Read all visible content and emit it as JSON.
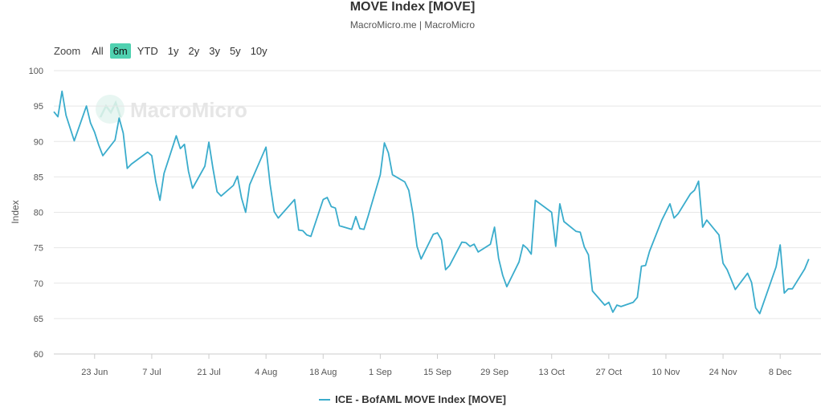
{
  "title": "MOVE Index [MOVE]",
  "subtitle": "MacroMicro.me | MacroMicro",
  "watermark": "MacroMicro",
  "zoom": {
    "label": "Zoom",
    "buttons": [
      "All",
      "6m",
      "YTD",
      "1y",
      "2y",
      "3y",
      "5y",
      "10y"
    ],
    "active": "6m"
  },
  "colors": {
    "series": "#3aaccc",
    "active_button": "#4fd1b0",
    "grid": "#e6e6e6"
  },
  "chart_data": {
    "type": "line",
    "ylabel": "Index",
    "ylim": [
      60,
      100
    ],
    "yticks": [
      60,
      65,
      70,
      75,
      80,
      85,
      90,
      95,
      100
    ],
    "xlim": [
      "2021-06-13",
      "2021-12-18"
    ],
    "xticks": [
      {
        "date": "2021-06-23",
        "label": "23 Jun"
      },
      {
        "date": "2021-07-07",
        "label": "7 Jul"
      },
      {
        "date": "2021-07-21",
        "label": "21 Jul"
      },
      {
        "date": "2021-08-04",
        "label": "4 Aug"
      },
      {
        "date": "2021-08-18",
        "label": "18 Aug"
      },
      {
        "date": "2021-09-01",
        "label": "1 Sep"
      },
      {
        "date": "2021-09-15",
        "label": "15 Sep"
      },
      {
        "date": "2021-09-29",
        "label": "29 Sep"
      },
      {
        "date": "2021-10-13",
        "label": "13 Oct"
      },
      {
        "date": "2021-10-27",
        "label": "27 Oct"
      },
      {
        "date": "2021-11-10",
        "label": "10 Nov"
      },
      {
        "date": "2021-11-24",
        "label": "24 Nov"
      },
      {
        "date": "2021-12-08",
        "label": "8 Dec"
      }
    ],
    "series": [
      {
        "name": "ICE - BofAML MOVE Index [MOVE]",
        "points": [
          [
            "2021-06-13",
            94.2
          ],
          [
            "2021-06-14",
            93.5
          ],
          [
            "2021-06-15",
            97.1
          ],
          [
            "2021-06-16",
            93.7
          ],
          [
            "2021-06-18",
            90.1
          ],
          [
            "2021-06-21",
            95.0
          ],
          [
            "2021-06-22",
            92.6
          ],
          [
            "2021-06-23",
            91.3
          ],
          [
            "2021-06-24",
            89.5
          ],
          [
            "2021-06-25",
            88.0
          ],
          [
            "2021-06-28",
            90.2
          ],
          [
            "2021-06-29",
            93.3
          ],
          [
            "2021-06-30",
            91.2
          ],
          [
            "2021-07-01",
            86.2
          ],
          [
            "2021-07-02",
            86.8
          ],
          [
            "2021-07-06",
            88.5
          ],
          [
            "2021-07-07",
            88.0
          ],
          [
            "2021-07-08",
            84.3
          ],
          [
            "2021-07-09",
            81.7
          ],
          [
            "2021-07-10",
            85.5
          ],
          [
            "2021-07-13",
            90.8
          ],
          [
            "2021-07-14",
            89.0
          ],
          [
            "2021-07-15",
            89.6
          ],
          [
            "2021-07-16",
            85.8
          ],
          [
            "2021-07-17",
            83.4
          ],
          [
            "2021-07-20",
            86.5
          ],
          [
            "2021-07-21",
            89.9
          ],
          [
            "2021-07-22",
            86.2
          ],
          [
            "2021-07-23",
            82.9
          ],
          [
            "2021-07-24",
            82.3
          ],
          [
            "2021-07-27",
            83.8
          ],
          [
            "2021-07-28",
            85.1
          ],
          [
            "2021-07-29",
            82.0
          ],
          [
            "2021-07-30",
            80.0
          ],
          [
            "2021-07-31",
            83.9
          ],
          [
            "2021-08-04",
            89.2
          ],
          [
            "2021-08-05",
            84.0
          ],
          [
            "2021-08-06",
            80.1
          ],
          [
            "2021-08-07",
            79.2
          ],
          [
            "2021-08-11",
            81.8
          ],
          [
            "2021-08-12",
            77.5
          ],
          [
            "2021-08-13",
            77.4
          ],
          [
            "2021-08-14",
            76.8
          ],
          [
            "2021-08-15",
            76.6
          ],
          [
            "2021-08-18",
            81.8
          ],
          [
            "2021-08-19",
            82.1
          ],
          [
            "2021-08-20",
            80.8
          ],
          [
            "2021-08-21",
            80.6
          ],
          [
            "2021-08-22",
            78.1
          ],
          [
            "2021-08-25",
            77.6
          ],
          [
            "2021-08-26",
            79.4
          ],
          [
            "2021-08-27",
            77.7
          ],
          [
            "2021-08-28",
            77.6
          ],
          [
            "2021-08-29",
            79.4
          ],
          [
            "2021-09-01",
            85.3
          ],
          [
            "2021-09-02",
            89.8
          ],
          [
            "2021-09-03",
            88.4
          ],
          [
            "2021-09-04",
            85.3
          ],
          [
            "2021-09-07",
            84.3
          ],
          [
            "2021-09-08",
            83.1
          ],
          [
            "2021-09-09",
            79.8
          ],
          [
            "2021-09-10",
            75.2
          ],
          [
            "2021-09-11",
            73.4
          ],
          [
            "2021-09-14",
            76.9
          ],
          [
            "2021-09-15",
            77.1
          ],
          [
            "2021-09-16",
            76.1
          ],
          [
            "2021-09-17",
            71.9
          ],
          [
            "2021-09-18",
            72.5
          ],
          [
            "2021-09-21",
            75.8
          ],
          [
            "2021-09-22",
            75.7
          ],
          [
            "2021-09-23",
            75.2
          ],
          [
            "2021-09-24",
            75.5
          ],
          [
            "2021-09-25",
            74.4
          ],
          [
            "2021-09-28",
            75.5
          ],
          [
            "2021-09-29",
            77.9
          ],
          [
            "2021-09-30",
            73.5
          ],
          [
            "2021-10-01",
            71.1
          ],
          [
            "2021-10-02",
            69.5
          ],
          [
            "2021-10-05",
            73.0
          ],
          [
            "2021-10-06",
            75.4
          ],
          [
            "2021-10-07",
            74.9
          ],
          [
            "2021-10-08",
            74.1
          ],
          [
            "2021-10-09",
            81.7
          ],
          [
            "2021-10-13",
            80.0
          ],
          [
            "2021-10-14",
            75.2
          ],
          [
            "2021-10-15",
            81.2
          ],
          [
            "2021-10-16",
            78.7
          ],
          [
            "2021-10-19",
            77.3
          ],
          [
            "2021-10-20",
            77.2
          ],
          [
            "2021-10-21",
            75.1
          ],
          [
            "2021-10-22",
            74.0
          ],
          [
            "2021-10-23",
            68.9
          ],
          [
            "2021-10-26",
            66.9
          ],
          [
            "2021-10-27",
            67.3
          ],
          [
            "2021-10-28",
            65.9
          ],
          [
            "2021-10-29",
            66.9
          ],
          [
            "2021-10-30",
            66.7
          ],
          [
            "2021-11-02",
            67.3
          ],
          [
            "2021-11-03",
            68.0
          ],
          [
            "2021-11-04",
            72.4
          ],
          [
            "2021-11-05",
            72.5
          ],
          [
            "2021-11-06",
            74.5
          ],
          [
            "2021-11-09",
            78.9
          ],
          [
            "2021-11-11",
            81.2
          ],
          [
            "2021-11-12",
            79.2
          ],
          [
            "2021-11-13",
            79.8
          ],
          [
            "2021-11-16",
            82.6
          ],
          [
            "2021-11-17",
            83.1
          ],
          [
            "2021-11-18",
            84.4
          ],
          [
            "2021-11-19",
            77.9
          ],
          [
            "2021-11-20",
            78.9
          ],
          [
            "2021-11-23",
            76.8
          ],
          [
            "2021-11-24",
            72.8
          ],
          [
            "2021-11-25",
            71.9
          ],
          [
            "2021-11-27",
            69.1
          ],
          [
            "2021-11-30",
            71.4
          ],
          [
            "2021-12-01",
            70.1
          ],
          [
            "2021-12-02",
            66.5
          ],
          [
            "2021-12-03",
            65.7
          ],
          [
            "2021-12-07",
            72.3
          ],
          [
            "2021-12-08",
            75.4
          ],
          [
            "2021-12-09",
            68.6
          ],
          [
            "2021-12-10",
            69.2
          ],
          [
            "2021-12-11",
            69.2
          ],
          [
            "2021-12-14",
            72.0
          ],
          [
            "2021-12-15",
            73.4
          ]
        ]
      }
    ],
    "grid": true,
    "legend": "bottom-center"
  }
}
